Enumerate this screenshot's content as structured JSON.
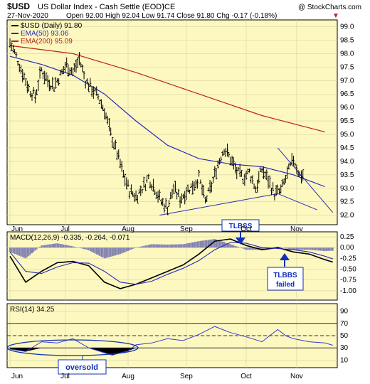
{
  "header": {
    "symbol": "$USD",
    "name": "US Dollar Index - Cash Settle (EOD)",
    "exchange": "ICE",
    "copyright": "@ StockCharts.com",
    "date": "27-Nov-2020",
    "ohlc": "Open 92.00  High 92.04  Low 91.74  Close 91.80  Chg -0.17 (-0.18%)",
    "ohlc_down_marker": "▼"
  },
  "colors": {
    "panel_bg": "#fcf8c0",
    "grid": "#d8d4a0",
    "price": "#000000",
    "ema50": "#2a2ab8",
    "ema200": "#c02020",
    "trendline": "#2a2ab8",
    "annotation": "#1030b8",
    "macd_hist": "#8080b0",
    "rsi_line": "#3a3ad0"
  },
  "annotations": {
    "tlbss": "TLBSS",
    "tlbbs_line1": "TLBBS",
    "tlbbs_line2": "failed",
    "oversold": "oversold"
  },
  "chart_data": [
    {
      "type": "line",
      "legend": [
        {
          "label": "$USD (Daily) 91.80",
          "color": "#000000"
        },
        {
          "label": "EMA(50) 93.06",
          "color": "#2a2ab8"
        },
        {
          "label": "EMA(200) 95.09",
          "color": "#c02020"
        }
      ],
      "ylim": [
        91.7,
        99.2
      ],
      "y_ticks": [
        "99.0",
        "98.5",
        "98.0",
        "97.5",
        "97.0",
        "96.5",
        "96.0",
        "95.5",
        "95.0",
        "94.5",
        "94.0",
        "93.5",
        "93.0",
        "92.5",
        "92.0"
      ],
      "x_ticks": [
        "Jun",
        "Jul",
        "Aug",
        "Sep",
        "Oct",
        "Nov"
      ],
      "grid": true,
      "series": [
        {
          "name": "$USD",
          "style": "ohlc-bars",
          "x": [
            0,
            4,
            8,
            12,
            16,
            20,
            24,
            28,
            32,
            36,
            40,
            44,
            48,
            52,
            56,
            60,
            64,
            68,
            72,
            76,
            80,
            84,
            88,
            92,
            96,
            100,
            104,
            108,
            112,
            116,
            120,
            124,
            128,
            132,
            136,
            140,
            144,
            148,
            152,
            156,
            160,
            164,
            168,
            172,
            176,
            180,
            184,
            186
          ],
          "values": [
            98.4,
            97.9,
            97.3,
            96.7,
            96.4,
            97.4,
            97.0,
            96.8,
            97.2,
            97.6,
            97.3,
            97.8,
            97.0,
            96.7,
            96.4,
            95.9,
            95.0,
            94.3,
            93.5,
            92.9,
            92.7,
            93.0,
            93.4,
            93.0,
            92.5,
            92.3,
            93.0,
            92.6,
            92.9,
            93.1,
            93.4,
            92.5,
            93.1,
            93.9,
            94.5,
            94.1,
            93.6,
            93.4,
            93.6,
            93.0,
            93.7,
            93.3,
            92.8,
            92.9,
            93.5,
            94.1,
            93.5,
            93.5
          ]
        },
        {
          "name": "EMA(50)",
          "x": [
            0,
            20,
            40,
            60,
            80,
            100,
            120,
            140,
            160,
            180,
            200
          ],
          "values": [
            97.9,
            97.6,
            97.2,
            96.5,
            95.5,
            94.6,
            94.1,
            93.9,
            93.8,
            93.5,
            93.06
          ]
        },
        {
          "name": "EMA(200)",
          "x": [
            0,
            40,
            80,
            120,
            160,
            200
          ],
          "values": [
            98.3,
            98.0,
            97.3,
            96.5,
            95.7,
            95.09
          ]
        }
      ],
      "trendlines": [
        {
          "x": [
            95,
            170
          ],
          "values": [
            92.0,
            92.8
          ]
        },
        {
          "x": [
            170,
            195
          ],
          "values": [
            92.8,
            92.2
          ]
        },
        {
          "x": [
            170,
            205
          ],
          "values": [
            94.5,
            92.1
          ]
        }
      ]
    },
    {
      "type": "line",
      "title": "MACD(12,26,9) -0.335, -0.264, -0.071",
      "ylim": [
        -1.15,
        0.3
      ],
      "y_ticks": [
        "0.25",
        "0.00",
        "-0.25",
        "-0.50",
        "-0.75",
        "-1.00"
      ],
      "series": [
        {
          "name": "MACD",
          "x": [
            0,
            10,
            20,
            30,
            40,
            50,
            60,
            70,
            80,
            90,
            100,
            110,
            120,
            130,
            140,
            150,
            160,
            170,
            180,
            190,
            200,
            205
          ],
          "values": [
            -0.2,
            -0.8,
            -0.55,
            -0.35,
            -0.32,
            -0.42,
            -0.8,
            -0.95,
            -0.85,
            -0.7,
            -0.55,
            -0.4,
            -0.15,
            0.15,
            0.2,
            0.05,
            -0.05,
            0.0,
            -0.1,
            -0.15,
            -0.28,
            -0.335
          ]
        },
        {
          "name": "Signal",
          "x": [
            0,
            10,
            20,
            30,
            40,
            50,
            60,
            70,
            80,
            90,
            100,
            110,
            120,
            130,
            140,
            150,
            160,
            170,
            180,
            190,
            200,
            205
          ],
          "values": [
            -0.1,
            -0.55,
            -0.6,
            -0.45,
            -0.35,
            -0.36,
            -0.55,
            -0.8,
            -0.85,
            -0.78,
            -0.62,
            -0.48,
            -0.3,
            -0.05,
            0.12,
            0.1,
            0.0,
            -0.02,
            -0.05,
            -0.1,
            -0.2,
            -0.264
          ]
        },
        {
          "name": "Histogram",
          "x": [
            0,
            10,
            20,
            30,
            40,
            50,
            60,
            70,
            80,
            90,
            100,
            110,
            120,
            130,
            140,
            150,
            160,
            170,
            180,
            190,
            200,
            205
          ],
          "values": [
            -0.1,
            -0.25,
            0.05,
            0.1,
            0.03,
            -0.06,
            -0.25,
            -0.15,
            0.0,
            0.08,
            0.07,
            0.08,
            0.15,
            0.2,
            0.08,
            -0.05,
            -0.05,
            0.02,
            -0.05,
            -0.05,
            -0.08,
            -0.071
          ]
        }
      ]
    },
    {
      "type": "line",
      "title": "RSI(14) 34.25",
      "ylim": [
        0,
        100
      ],
      "y_ticks": [
        "90",
        "70",
        "50",
        "30",
        "10"
      ],
      "x_ticks": [
        "Jun",
        "Jul",
        "Aug",
        "Sep",
        "Oct",
        "Nov"
      ],
      "levels": [
        70,
        50,
        30
      ],
      "series": [
        {
          "name": "RSI",
          "x": [
            0,
            10,
            20,
            30,
            40,
            50,
            60,
            65,
            70,
            75,
            80,
            90,
            100,
            110,
            120,
            130,
            135,
            140,
            150,
            160,
            170,
            175,
            180,
            190,
            200,
            205
          ],
          "values": [
            28,
            24,
            40,
            38,
            45,
            30,
            22,
            18,
            22,
            25,
            35,
            38,
            45,
            42,
            52,
            65,
            60,
            55,
            48,
            40,
            60,
            50,
            45,
            40,
            38,
            34.25
          ]
        }
      ]
    }
  ]
}
